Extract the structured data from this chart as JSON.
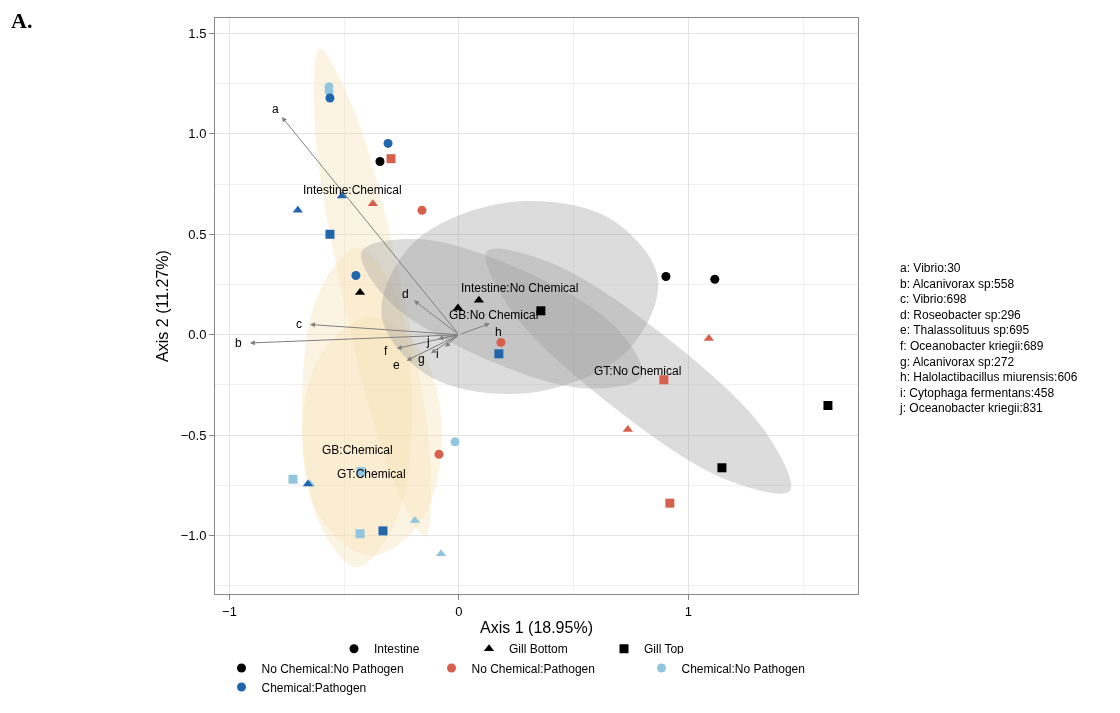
{
  "chart_data": {
    "type": "scatter",
    "title": "A.",
    "xlabel": "Axis 1 (18.95%)",
    "ylabel": "Axis 2 (11.27%)",
    "xlim": [
      -1.063,
      1.739
    ],
    "ylim": [
      -1.29,
      1.576
    ],
    "xticks": [
      {
        "value": -1,
        "label": "−1"
      },
      0,
      1
    ],
    "yticks": [
      {
        "value": -1,
        "label": "−1.0"
      },
      {
        "value": -0.5,
        "label": "−0.5"
      },
      {
        "value": 0,
        "label": "0.0"
      },
      {
        "value": 0.5,
        "label": "0.5"
      },
      {
        "value": 1,
        "label": "1.0"
      },
      {
        "value": 1.5,
        "label": "1.5"
      }
    ],
    "grid": true,
    "legend": "bottom",
    "series": [
      {
        "type": "area",
        "name": "Intestine:Chemical",
        "color": "#f5dfb0",
        "x": [
          -0.148,
          -0.125,
          -0.249,
          -0.448,
          -0.606,
          -0.629,
          -0.505,
          -0.306
        ],
        "values": [
          -1.005,
          -0.628,
          0.238,
          1.089,
          1.424,
          1.048,
          0.181,
          -0.665
        ]
      },
      {
        "type": "area",
        "name": "GB:Chemical",
        "color": "#f5dfb0",
        "x": [
          -0.444,
          -0.275,
          -0.205,
          -0.275,
          -0.444,
          -0.614,
          -0.684,
          -0.614
        ],
        "values": [
          -1.157,
          -0.924,
          -0.362,
          0.2,
          0.433,
          0.2,
          -0.362,
          -0.924
        ]
      },
      {
        "type": "area",
        "name": "GT:Chemical",
        "color": "#f5dfb0",
        "x": [
          -0.379,
          -0.163,
          -0.074,
          -0.163,
          -0.379,
          -0.595,
          -0.684,
          -0.595
        ],
        "values": [
          -1.1,
          -0.926,
          -0.505,
          -0.084,
          0.09,
          -0.084,
          -0.505,
          -0.926
        ]
      },
      {
        "type": "area",
        "name": "Intestine:No Chemical",
        "color": "#9a9a9a",
        "x": [
          0.867,
          0.735,
          0.329,
          -0.115,
          -0.336,
          -0.203,
          0.203,
          0.647
        ],
        "values": [
          0.281,
          -0.08,
          -0.286,
          -0.215,
          0.09,
          0.452,
          0.657,
          0.586
        ]
      },
      {
        "type": "area",
        "name": "GB:No Chemical",
        "color": "#9a9a9a",
        "x": [
          0.797,
          0.683,
          0.279,
          -0.18,
          -0.423,
          -0.308,
          0.096,
          0.554
        ],
        "values": [
          -0.205,
          0.038,
          0.32,
          0.476,
          0.414,
          0.171,
          -0.111,
          -0.267
        ]
      },
      {
        "type": "area",
        "name": "GT:No Chemical",
        "color": "#9a9a9a",
        "x": [
          1.442,
          1.337,
          0.907,
          0.403,
          0.122,
          0.227,
          0.658,
          1.161
        ],
        "values": [
          -0.776,
          -0.485,
          -0.016,
          0.357,
          0.414,
          0.123,
          -0.346,
          -0.719
        ]
      },
      {
        "marker": "circle",
        "color": "#000000",
        "x": [
          -0.344,
          0.902,
          1.115
        ],
        "values": [
          0.862,
          0.29,
          0.276
        ]
      },
      {
        "marker": "circle",
        "color": "#d6604d",
        "x": [
          -0.161,
          0.183,
          -0.087
        ],
        "values": [
          0.619,
          -0.038,
          -0.595
        ]
      },
      {
        "marker": "circle",
        "color": "#92c5de",
        "x": [
          -0.566,
          -0.566,
          -0.017
        ],
        "values": [
          1.234,
          1.21,
          -0.533
        ]
      },
      {
        "marker": "circle",
        "color": "#2166ac",
        "x": [
          -0.562,
          -0.309,
          -0.449
        ],
        "values": [
          1.178,
          0.952,
          0.295
        ]
      },
      {
        "marker": "triangle",
        "color": "#000000",
        "x": [
          -0.431,
          -0.004,
          0.087
        ],
        "values": [
          0.21,
          0.133,
          0.171
        ]
      },
      {
        "marker": "triangle",
        "color": "#d6604d",
        "x": [
          -0.375,
          1.089,
          0.736
        ],
        "values": [
          0.652,
          -0.019,
          -0.471
        ]
      },
      {
        "marker": "triangle",
        "color": "#92c5de",
        "x": [
          -0.649,
          -0.192,
          -0.078
        ],
        "values": [
          -0.743,
          -0.924,
          -1.09
        ]
      },
      {
        "marker": "triangle",
        "color": "#2166ac",
        "x": [
          -0.51,
          -0.702,
          -0.658
        ],
        "values": [
          0.69,
          0.619,
          -0.743
        ]
      },
      {
        "marker": "square",
        "color": "#000000",
        "x": [
          0.357,
          1.146,
          1.608
        ],
        "values": [
          0.119,
          -0.662,
          -0.352
        ]
      },
      {
        "marker": "square",
        "color": "#d6604d",
        "x": [
          -0.296,
          0.893,
          0.919
        ],
        "values": [
          0.876,
          -0.224,
          -0.838
        ]
      },
      {
        "marker": "square",
        "color": "#92c5de",
        "x": [
          -0.723,
          -0.427,
          -0.431
        ],
        "values": [
          -0.719,
          -0.681,
          -0.99
        ]
      },
      {
        "marker": "square",
        "color": "#2166ac",
        "x": [
          -0.562,
          0.174,
          -0.331
        ],
        "values": [
          0.5,
          -0.095,
          -0.976
        ]
      },
      {
        "name": "Intestine",
        "marker": "circle",
        "color": "#000000"
      },
      {
        "name": "Gill Bottom",
        "marker": "triangle",
        "color": "#000000"
      },
      {
        "name": "Gill Top",
        "marker": "square",
        "color": "#000000"
      },
      {
        "name": "No Chemical:No Pathogen",
        "marker": "circle",
        "color": "#000000"
      },
      {
        "name": "No Chemical:Pathogen",
        "marker": "circle",
        "color": "#d6604d"
      },
      {
        "name": "Chemical:No Pathogen",
        "marker": "circle",
        "color": "#92c5de"
      },
      {
        "name": "Chemical:Pathogen",
        "marker": "circle",
        "color": "#2166ac"
      }
    ],
    "annotations": [
      "a",
      "b",
      "c",
      "d",
      "e",
      "f",
      "g",
      "h",
      "i",
      "j",
      "a: Vibrio:30",
      "b: Alcanivorax sp:558",
      "c: Vibrio:698",
      "d: Roseobacter sp:296",
      "e: Thalassolituus sp:695",
      "f: Oceanobacter kriegii:689",
      "g: Alcanivorax sp:272",
      "h: Halolactibacillus miurensis:606",
      "i: Cytophaga fermentans:458",
      "j: Oceanobacter kriegii:831"
    ]
  }
}
